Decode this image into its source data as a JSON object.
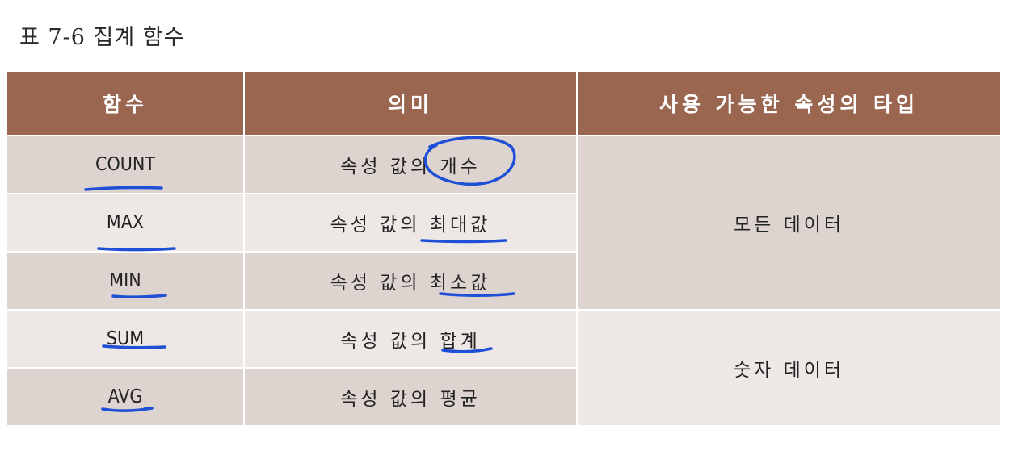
{
  "caption": "표 7-6 집계 함수",
  "table": {
    "headers": [
      "함수",
      "의미",
      "사용 가능한 속성의 타입"
    ],
    "rows": [
      {
        "function": "COUNT",
        "meaning": "속성 값의 개수"
      },
      {
        "function": "MAX",
        "meaning": "속성 값의 최대값"
      },
      {
        "function": "MIN",
        "meaning": "속성 값의 최소값"
      },
      {
        "function": "SUM",
        "meaning": "속성 값의 합계"
      },
      {
        "function": "AVG",
        "meaning": "속성 값의 평균"
      }
    ],
    "types": [
      {
        "label": "모든 데이터",
        "applies_to": [
          "COUNT",
          "MAX",
          "MIN"
        ]
      },
      {
        "label": "숫자 데이터",
        "applies_to": [
          "SUM",
          "AVG"
        ]
      }
    ]
  },
  "colors": {
    "header_bg": "#9b6650",
    "row_dark": "#ddd3cf",
    "row_light": "#ede8e6",
    "pen_annotation": "#1f4fd6"
  }
}
